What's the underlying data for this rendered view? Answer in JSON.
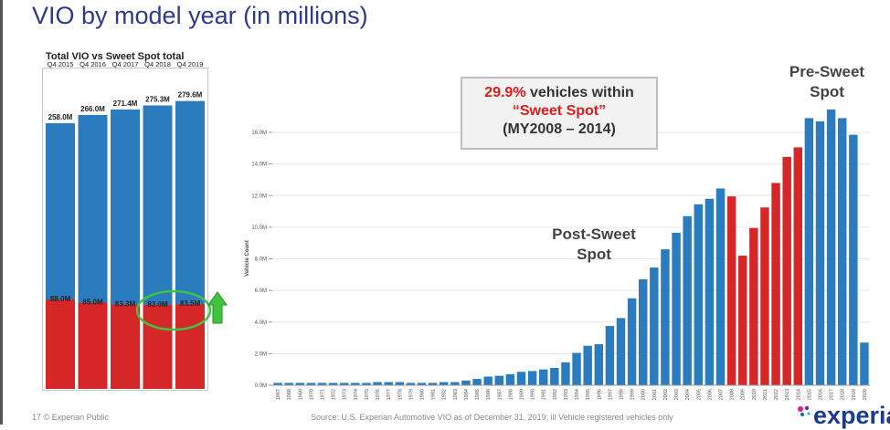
{
  "slide": {
    "title": "VIO by model year (in millions)",
    "callout": {
      "pct": "29.9%",
      "line1_rest": " vehicles within",
      "line2": "“Sweet Spot”",
      "line3": "(MY2008 – 2014)"
    },
    "post_label_line1": "Post-Sweet",
    "post_label_line2": "Spot",
    "pre_label_line1": "Pre-Sweet",
    "pre_label_line2": "Spot",
    "footer_left": "17 © Experian Public",
    "footer_source": "Source: U.S. Experian Automotive VIO as of December 31, 2019; ill Vehicle registered vehicles only",
    "logo": "experian",
    "colors": {
      "blue": "#2b7bbf",
      "red": "#d62728",
      "green": "#3fc43f",
      "title": "#2e3a8c"
    }
  },
  "chart_data": [
    {
      "type": "bar",
      "title": "Total VIO vs Sweet Spot total",
      "categories": [
        "Q4 2015",
        "Q4 2016",
        "Q4 2017",
        "Q4 2018",
        "Q4 2019"
      ],
      "series": [
        {
          "name": "Total VIO",
          "values": [
            258.0,
            266.0,
            271.4,
            275.3,
            279.6
          ],
          "labels": [
            "258.0M",
            "266.0M",
            "271.4M",
            "275.3M",
            "279.6M"
          ],
          "color": "#2b7bbf"
        },
        {
          "name": "Sweet Spot total",
          "values": [
            88.0,
            85.0,
            83.3,
            83.0,
            83.5
          ],
          "labels": [
            "88.0M",
            "85.0M",
            "83.3M",
            "83.0M",
            "83.5M"
          ],
          "color": "#d62728"
        }
      ],
      "annotations": [
        "green ellipse around Q4 2018 and Q4 2019 sweet spot values",
        "green up arrow"
      ]
    },
    {
      "type": "bar",
      "ylabel": "Vehicle Count",
      "ylim": [
        0,
        17.8
      ],
      "yticks": [
        0,
        2,
        4,
        6,
        8,
        10,
        12,
        14,
        16
      ],
      "ytick_labels": [
        "0.0M",
        "2.0M",
        "4.0M",
        "6.0M",
        "8.0M",
        "10.0M",
        "12.0M",
        "14.0M",
        "16.0M"
      ],
      "categories": [
        "1967",
        "1968",
        "1969",
        "1970",
        "1971",
        "1972",
        "1973",
        "1974",
        "1975",
        "1976",
        "1977",
        "1978",
        "1979",
        "1980",
        "1981",
        "1982",
        "1983",
        "1984",
        "1985",
        "1986",
        "1987",
        "1988",
        "1989",
        "1990",
        "1991",
        "1992",
        "1993",
        "1994",
        "1995",
        "1996",
        "1997",
        "1998",
        "1999",
        "2000",
        "2001",
        "2002",
        "2003",
        "2004",
        "2005",
        "2006",
        "2007",
        "2008",
        "2009",
        "2010",
        "2011",
        "2012",
        "2013",
        "2014",
        "2015",
        "2016",
        "2017",
        "2018",
        "2019",
        "2020"
      ],
      "values": [
        0.15,
        0.15,
        0.15,
        0.15,
        0.15,
        0.15,
        0.15,
        0.15,
        0.15,
        0.2,
        0.2,
        0.2,
        0.15,
        0.15,
        0.15,
        0.2,
        0.2,
        0.3,
        0.4,
        0.55,
        0.6,
        0.7,
        0.85,
        0.9,
        1.0,
        1.1,
        1.45,
        2.05,
        2.5,
        2.6,
        3.75,
        4.25,
        5.5,
        6.7,
        7.45,
        8.6,
        9.65,
        10.7,
        11.45,
        11.8,
        12.45,
        11.95,
        8.2,
        9.95,
        11.25,
        12.8,
        14.45,
        15.05,
        16.9,
        16.7,
        17.45,
        16.9,
        15.85,
        2.7
      ],
      "highlight": {
        "color_default": "#2b7bbf",
        "color_sweet_spot": "#d62728",
        "sweet_spot_range": [
          "2008",
          "2014"
        ]
      }
    }
  ]
}
